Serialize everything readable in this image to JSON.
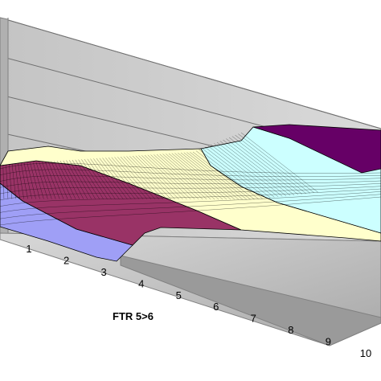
{
  "chart_data": {
    "type": "surface",
    "title": "",
    "xlabel": "FTR 5>6",
    "x_ticks": [
      "1",
      "2",
      "3",
      "4",
      "5",
      "6",
      "7",
      "8",
      "9",
      "10"
    ],
    "y_ticks": [],
    "z_ticks": [],
    "legend": "none",
    "grid": true,
    "band_colors": [
      "#9f9ff6",
      "#993366",
      "#ffffcc",
      "#ccffff",
      "#660066"
    ],
    "floor_color": "#c0c0c0",
    "wall_color": "#c0c0c0"
  }
}
